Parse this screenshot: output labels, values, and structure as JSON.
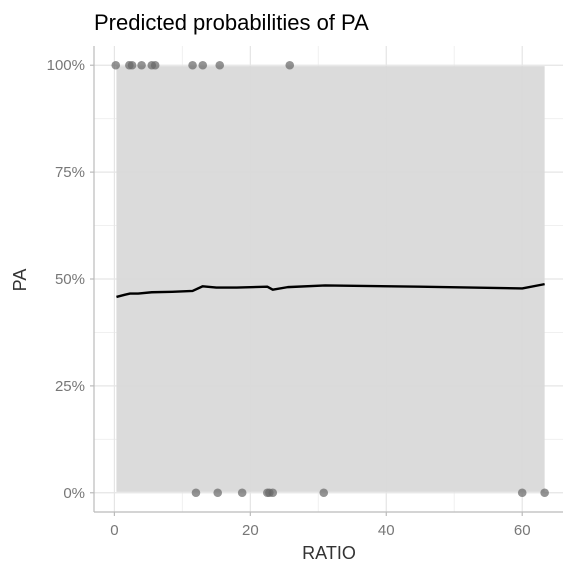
{
  "chart_data": {
    "type": "line",
    "title": "Predicted probabilities of PA",
    "xlabel": "RATIO",
    "ylabel": "PA",
    "xlim": [
      -3,
      66
    ],
    "ylim": [
      -0.045,
      1.045
    ],
    "x_ticks": [
      0,
      20,
      40,
      60
    ],
    "x_tick_labels": [
      "0",
      "20",
      "40",
      "60"
    ],
    "y_ticks": [
      0,
      0.25,
      0.5,
      0.75,
      1
    ],
    "y_tick_labels": [
      "0%",
      "25%",
      "50%",
      "75%",
      "100%"
    ],
    "grid": true,
    "legend": "none",
    "series": [
      {
        "x": [
          0.3,
          1.5,
          2.3,
          3.5,
          5.5,
          8.5,
          11.5,
          13.0,
          15.0,
          18.0,
          22.5,
          23.3,
          25.5,
          31.0,
          45.0,
          60.0,
          63.3
        ],
        "y": [
          0.458,
          0.463,
          0.466,
          0.466,
          0.469,
          0.47,
          0.472,
          0.483,
          0.48,
          0.48,
          0.482,
          0.475,
          0.481,
          0.485,
          0.482,
          0.478,
          0.488
        ]
      }
    ],
    "confidence_band": {
      "x": [
        0.3,
        63.3
      ],
      "lower": [
        0.002,
        0.002
      ],
      "upper": [
        0.998,
        0.998
      ]
    },
    "points": [
      {
        "x": 0.2,
        "y": 1
      },
      {
        "x": 2.2,
        "y": 1
      },
      {
        "x": 2.6,
        "y": 1
      },
      {
        "x": 4.0,
        "y": 1
      },
      {
        "x": 5.5,
        "y": 1
      },
      {
        "x": 6.0,
        "y": 1
      },
      {
        "x": 11.5,
        "y": 1
      },
      {
        "x": 13.0,
        "y": 1
      },
      {
        "x": 15.5,
        "y": 1
      },
      {
        "x": 25.8,
        "y": 1
      },
      {
        "x": 12.0,
        "y": 0
      },
      {
        "x": 15.2,
        "y": 0
      },
      {
        "x": 18.8,
        "y": 0
      },
      {
        "x": 22.5,
        "y": 0
      },
      {
        "x": 22.8,
        "y": 0
      },
      {
        "x": 23.3,
        "y": 0
      },
      {
        "x": 30.8,
        "y": 0
      },
      {
        "x": 60.0,
        "y": 0
      },
      {
        "x": 63.3,
        "y": 0
      }
    ],
    "colors": {
      "line": "#000000",
      "band": "#d9d9d9",
      "points": "#666666",
      "grid_major": "#e5e5e5",
      "grid_minor": "#f0f0f0",
      "axis": "#bbbbbb"
    }
  }
}
